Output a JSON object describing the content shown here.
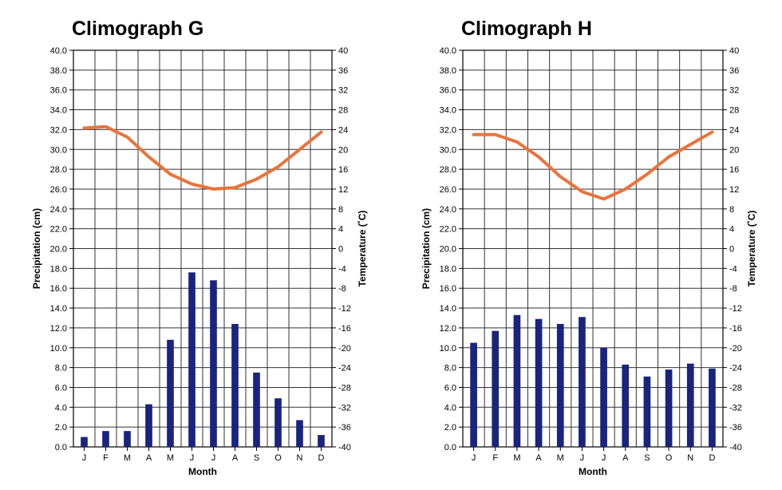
{
  "chart_data": [
    {
      "type": "bar+line",
      "title": "Climograph G",
      "xlabel": "Month",
      "ylabel": "Precipitation (cm)",
      "y2label": "Temperature (˚C)",
      "categories": [
        "J",
        "F",
        "M",
        "A",
        "M",
        "J",
        "J",
        "A",
        "S",
        "O",
        "N",
        "D"
      ],
      "ylim": [
        0,
        40
      ],
      "y2lim": [
        -40,
        40
      ],
      "yticks": [
        "0.0",
        "2.0",
        "4.0",
        "6.0",
        "8.0",
        "10.0",
        "12.0",
        "14.0",
        "16.0",
        "18.0",
        "20.0",
        "22.0",
        "24.0",
        "26.0",
        "28.0",
        "30.0",
        "32.0",
        "34.0",
        "36.0",
        "38.0",
        "40.0"
      ],
      "y2ticks": [
        "-40",
        "-36",
        "-32",
        "-28",
        "-24",
        "-20",
        "-16",
        "-12",
        "-8",
        "-4",
        "0",
        "4",
        "8",
        "12",
        "16",
        "20",
        "24",
        "28",
        "32",
        "36",
        "40"
      ],
      "series": [
        {
          "name": "Precipitation (cm)",
          "kind": "bar",
          "color": "#1a237e",
          "values": [
            1.0,
            1.6,
            1.6,
            4.3,
            10.8,
            17.6,
            16.8,
            12.4,
            7.5,
            4.9,
            2.7,
            1.2
          ]
        },
        {
          "name": "Temperature (˚C)",
          "kind": "line",
          "color": "#e8743b",
          "values": [
            24.3,
            24.6,
            22.5,
            18.5,
            15.0,
            13.0,
            12.0,
            12.3,
            14.0,
            16.5,
            20.0,
            23.5
          ]
        }
      ]
    },
    {
      "type": "bar+line",
      "title": "Climograph H",
      "xlabel": "Month",
      "ylabel": "Precipitation (cm)",
      "y2label": "Temperature (˚C)",
      "categories": [
        "J",
        "F",
        "M",
        "A",
        "M",
        "J",
        "J",
        "A",
        "S",
        "O",
        "N",
        "D"
      ],
      "ylim": [
        0,
        40
      ],
      "y2lim": [
        -40,
        40
      ],
      "yticks": [
        "0.0",
        "2.0",
        "4.0",
        "6.0",
        "8.0",
        "10.0",
        "12.0",
        "14.0",
        "16.0",
        "18.0",
        "20.0",
        "22.0",
        "24.0",
        "26.0",
        "28.0",
        "30.0",
        "32.0",
        "34.0",
        "36.0",
        "38.0",
        "40.0"
      ],
      "y2ticks": [
        "-40",
        "-36",
        "-32",
        "-28",
        "-24",
        "-20",
        "-16",
        "-12",
        "-8",
        "-4",
        "0",
        "4",
        "8",
        "12",
        "16",
        "20",
        "24",
        "28",
        "32",
        "36",
        "40"
      ],
      "series": [
        {
          "name": "Precipitation (cm)",
          "kind": "bar",
          "color": "#1a237e",
          "values": [
            10.5,
            11.7,
            13.3,
            12.9,
            12.4,
            13.1,
            10.0,
            8.3,
            7.1,
            7.8,
            8.4,
            7.9
          ]
        },
        {
          "name": "Temperature (˚C)",
          "kind": "line",
          "color": "#e8743b",
          "values": [
            23.0,
            23.0,
            21.5,
            18.5,
            14.5,
            11.5,
            10.0,
            12.0,
            15.0,
            18.5,
            21.0,
            23.5
          ]
        }
      ]
    }
  ]
}
